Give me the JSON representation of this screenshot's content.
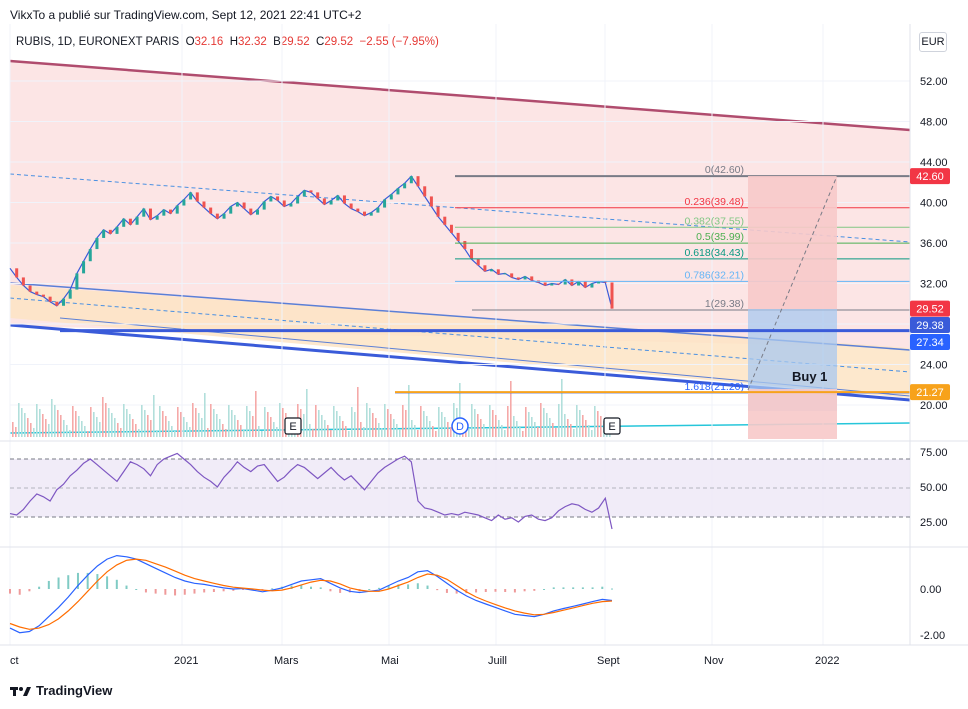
{
  "header": {
    "credit": "VikxTo a  publié sur TradingView.com, Sept 12, 2021 22:41 UTC+2"
  },
  "symbol": {
    "name": "RUBIS, 1D, EURONEXT PARIS",
    "o_label": "O",
    "o_value": "32.16",
    "h_label": "H",
    "h_value": "32.32",
    "b_label": "B",
    "b_value": "29.52",
    "c_label": "C",
    "c_value": "29.52",
    "change": "−2.55 (−7.95%)"
  },
  "currency": "EUR",
  "footer": {
    "logo_text": "TradingView",
    "logo_icon": "tradingview-logo-icon"
  },
  "colors": {
    "up": "#26a69a",
    "down": "#ef5350",
    "price_red": "#e53935",
    "blue_line": "#3a5bd9",
    "fib_red": "#f23645",
    "orange": "#f7a21b",
    "rsi": "#7e57c2",
    "macd": "#2962ff",
    "signal": "#ff6d00"
  },
  "chart_data": [
    {
      "type": "line",
      "panel": "price",
      "y_ticks": [
        "52.00",
        "48.00",
        "44.00",
        "40.00",
        "36.00",
        "32.00",
        "28.00",
        "24.00",
        "20.00"
      ],
      "ylim": [
        16.6,
        55.0
      ],
      "x_ticks": [
        "ct",
        "2021",
        "Mars",
        "Mai",
        "Juill",
        "Sept",
        "Nov",
        "2022"
      ],
      "price_labels": [
        {
          "text": "42.60",
          "value": 42.6,
          "color": "#f23645"
        },
        {
          "text": "29.52",
          "value": 29.52,
          "color": "#f23645"
        },
        {
          "text": "29.38",
          "value": 29.38,
          "color": "#3a5bd9"
        },
        {
          "text": "27.34",
          "value": 27.34,
          "color": "#2962ff"
        },
        {
          "text": "21.27",
          "value": 21.27,
          "color": "#f7a21b"
        }
      ],
      "fibonacci": [
        {
          "text": "0(42.60)",
          "value": 42.6,
          "color": "#787b86"
        },
        {
          "text": "0.236(39.48)",
          "value": 39.48,
          "color": "#f23645"
        },
        {
          "text": "0.382(37.55)",
          "value": 37.55,
          "color": "#81c784"
        },
        {
          "text": "0.5(35.99)",
          "value": 35.99,
          "color": "#4caf50"
        },
        {
          "text": "0.618(34.43)",
          "value": 34.43,
          "color": "#089981"
        },
        {
          "text": "0.786(32.21)",
          "value": 32.21,
          "color": "#64b5f6"
        },
        {
          "text": "1(29.38)",
          "value": 29.38,
          "color": "#787b86"
        },
        {
          "text": "1.618(21.20)",
          "value": 21.2,
          "color": "#2962ff"
        }
      ],
      "annotation": "Buy 1",
      "event_markers": [
        "E",
        "D",
        "E"
      ],
      "close_series": [
        33.5,
        32.6,
        31.8,
        31.2,
        30.9,
        30.7,
        30.2,
        29.8,
        30.5,
        31.4,
        33.0,
        34.2,
        35.4,
        36.5,
        37.3,
        36.9,
        37.6,
        38.4,
        37.8,
        38.6,
        39.4,
        38.3,
        38.7,
        39.3,
        38.9,
        39.7,
        40.3,
        41.0,
        40.1,
        39.5,
        38.9,
        38.4,
        38.9,
        39.6,
        40.0,
        39.4,
        38.8,
        39.3,
        40.1,
        40.6,
        40.2,
        39.6,
        39.9,
        40.6,
        41.2,
        41.0,
        40.4,
        39.8,
        40.2,
        40.7,
        39.9,
        39.4,
        39.1,
        38.7,
        39.0,
        39.5,
        40.3,
        40.8,
        41.4,
        41.9,
        42.6,
        41.6,
        40.6,
        39.6,
        38.6,
        37.8,
        37.0,
        36.2,
        35.4,
        34.4,
        33.8,
        33.2,
        33.4,
        32.9,
        33.0,
        32.6,
        32.4,
        32.7,
        32.3,
        32.1,
        31.8,
        32.0,
        31.9,
        32.4,
        31.8,
        32.2,
        31.6,
        32.0,
        32.2,
        32.1,
        29.52
      ]
    },
    {
      "type": "line",
      "panel": "RSI",
      "y_ticks": [
        "75.00",
        "50.00",
        "25.00"
      ],
      "ylim": [
        15,
        85
      ],
      "values": [
        31,
        30,
        34,
        40,
        45,
        43,
        40,
        48,
        52,
        58,
        62,
        67,
        70,
        66,
        62,
        58,
        54,
        61,
        68,
        66,
        63,
        58,
        66,
        70,
        72,
        74,
        70,
        66,
        61,
        57,
        54,
        50,
        57,
        62,
        68,
        64,
        61,
        65,
        66,
        60,
        54,
        57,
        62,
        66,
        64,
        60,
        56,
        60,
        64,
        59,
        55,
        58,
        53,
        48,
        54,
        60,
        64,
        67,
        70,
        72,
        68,
        40,
        35,
        34,
        32,
        30,
        31,
        30,
        32,
        31,
        30,
        28,
        26,
        30,
        27,
        28,
        25,
        29,
        30,
        27,
        26,
        28,
        33,
        36,
        38,
        37,
        34,
        32,
        35,
        42,
        20
      ]
    },
    {
      "type": "bar",
      "panel": "MACD",
      "y_ticks": [
        "0.00",
        "-2.00"
      ],
      "ylim": [
        -2.4,
        1.6
      ],
      "macd": [
        -1.7,
        -1.9,
        -1.85,
        -1.6,
        -1.2,
        -0.8,
        -0.35,
        0.15,
        0.6,
        1.0,
        1.3,
        1.45,
        1.4,
        1.3,
        1.1,
        0.9,
        0.7,
        0.5,
        0.35,
        0.25,
        0.2,
        0.12,
        0.05,
        0.0,
        0.02,
        -0.05,
        -0.12,
        -0.05,
        0.05,
        0.2,
        0.35,
        0.4,
        0.45,
        0.25,
        0.05,
        -0.1,
        -0.15,
        -0.1,
        -0.05,
        0.15,
        0.35,
        0.5,
        0.75,
        0.8,
        0.55,
        0.25,
        -0.05,
        -0.3,
        -0.5,
        -0.65,
        -0.8,
        -0.95,
        -1.1,
        -1.15,
        -1.2,
        -1.1,
        -0.95,
        -0.85,
        -0.75,
        -0.65,
        -0.55,
        -0.45,
        -0.5
      ],
      "signal": [
        -1.5,
        -1.65,
        -1.75,
        -1.7,
        -1.55,
        -1.3,
        -0.95,
        -0.55,
        -0.1,
        0.35,
        0.75,
        1.05,
        1.25,
        1.3,
        1.25,
        1.1,
        0.95,
        0.78,
        0.6,
        0.45,
        0.35,
        0.25,
        0.15,
        0.08,
        0.04,
        0.0,
        -0.05,
        -0.08,
        -0.05,
        0.05,
        0.18,
        0.3,
        0.38,
        0.35,
        0.22,
        0.05,
        -0.05,
        -0.1,
        -0.1,
        0.0,
        0.15,
        0.3,
        0.5,
        0.65,
        0.6,
        0.42,
        0.15,
        -0.12,
        -0.35,
        -0.52,
        -0.68,
        -0.82,
        -0.95,
        -1.05,
        -1.12,
        -1.1,
        -1.02,
        -0.92,
        -0.82,
        -0.72,
        -0.62,
        -0.55,
        -0.52
      ]
    }
  ]
}
